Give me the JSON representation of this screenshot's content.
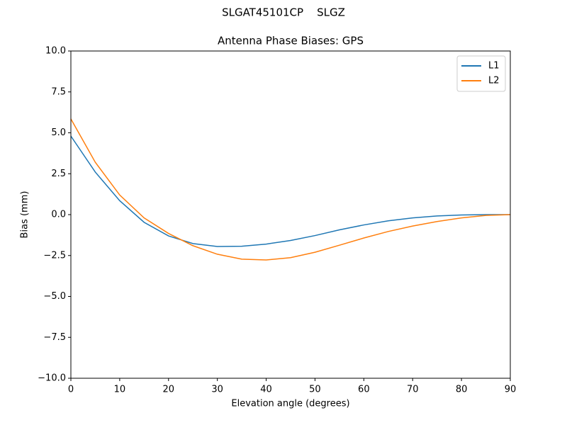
{
  "chart_data": {
    "type": "line",
    "suptitle": "SLGAT45101CP    SLGZ",
    "title": "Antenna Phase Biases: GPS",
    "x_label": "Elevation angle (degrees)",
    "y_label": "Bias (mm)",
    "x": [
      0,
      5,
      10,
      15,
      20,
      25,
      30,
      35,
      40,
      45,
      50,
      55,
      60,
      65,
      70,
      75,
      80,
      85,
      90
    ],
    "series": [
      {
        "name": "L1",
        "color": "#1f77b4",
        "values": [
          4.8,
          2.6,
          0.85,
          -0.47,
          -1.3,
          -1.77,
          -1.95,
          -1.93,
          -1.8,
          -1.58,
          -1.28,
          -0.93,
          -0.63,
          -0.38,
          -0.2,
          -0.08,
          -0.02,
          0,
          0
        ]
      },
      {
        "name": "L2",
        "color": "#ff7f0e",
        "values": [
          5.85,
          3.2,
          1.2,
          -0.2,
          -1.15,
          -1.9,
          -2.42,
          -2.72,
          -2.77,
          -2.63,
          -2.3,
          -1.87,
          -1.43,
          -1.03,
          -0.7,
          -0.42,
          -0.2,
          -0.05,
          0
        ]
      }
    ],
    "xlim": [
      0,
      90
    ],
    "xticks": [
      0,
      10,
      20,
      30,
      40,
      50,
      60,
      70,
      80,
      90
    ],
    "ylim": [
      -10,
      10
    ],
    "yticks": [
      {
        "value": -10,
        "label": "−10.0"
      },
      {
        "value": -7.5,
        "label": "−7.5"
      },
      {
        "value": -5,
        "label": "−5.0"
      },
      {
        "value": -2.5,
        "label": "−2.5"
      },
      {
        "value": 0,
        "label": "0.0"
      },
      {
        "value": 2.5,
        "label": "2.5"
      },
      {
        "value": 5,
        "label": "5.0"
      },
      {
        "value": 7.5,
        "label": "7.5"
      },
      {
        "value": 10,
        "label": "10.0"
      }
    ],
    "legend": "upper right"
  }
}
